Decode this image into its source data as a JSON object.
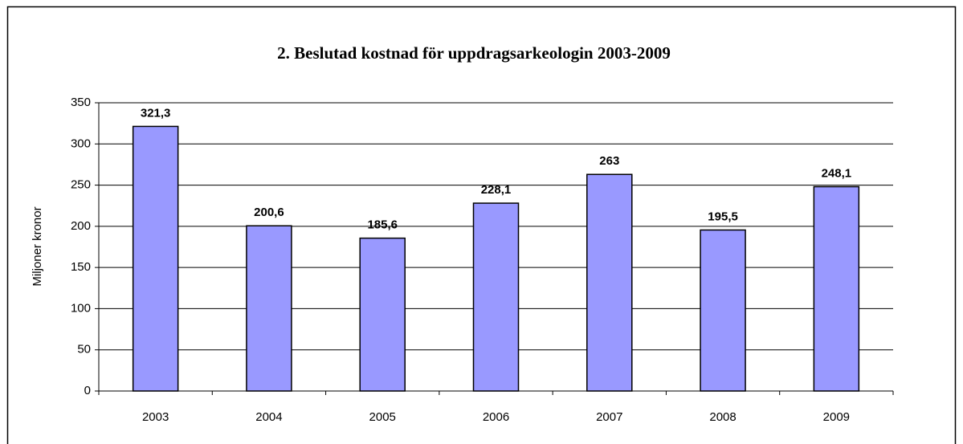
{
  "chart_data": {
    "type": "bar",
    "title": "2. Beslutad kostnad för uppdragsarkeologin 2003-2009",
    "y_label": "Miljoner kronor",
    "categories": [
      "2003",
      "2004",
      "2005",
      "2006",
      "2007",
      "2008",
      "2009"
    ],
    "values": [
      321.3,
      200.6,
      185.6,
      228.1,
      263,
      195.5,
      248.1
    ],
    "value_labels": [
      "321,3",
      "200,6",
      "185,6",
      "228,1",
      "263",
      "195,5",
      "248,1"
    ],
    "color": "#9999ff",
    "ylim": [
      0,
      350
    ],
    "yticks": [
      0,
      50,
      100,
      150,
      200,
      250,
      300,
      350
    ],
    "grid": true
  }
}
